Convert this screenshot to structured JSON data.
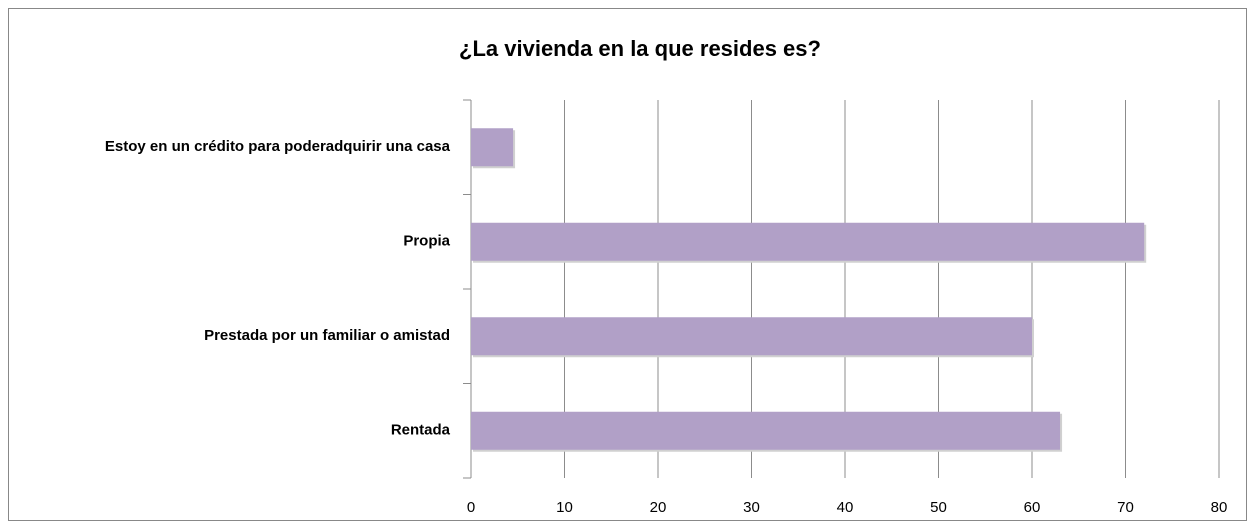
{
  "chart_data": {
    "type": "bar",
    "orientation": "horizontal",
    "title": "¿La vivienda en la que resides es?",
    "categories": [
      "Estoy en un crédito para poderadquirir una casa",
      "Propia",
      "Prestada por un familiar o amistad",
      "Rentada"
    ],
    "values": [
      4.5,
      72,
      60,
      63
    ],
    "color": "#b1a0c7",
    "xlim": [
      0,
      80
    ],
    "xticks": [
      0,
      10,
      20,
      30,
      40,
      50,
      60,
      70,
      80
    ],
    "grid": true
  }
}
